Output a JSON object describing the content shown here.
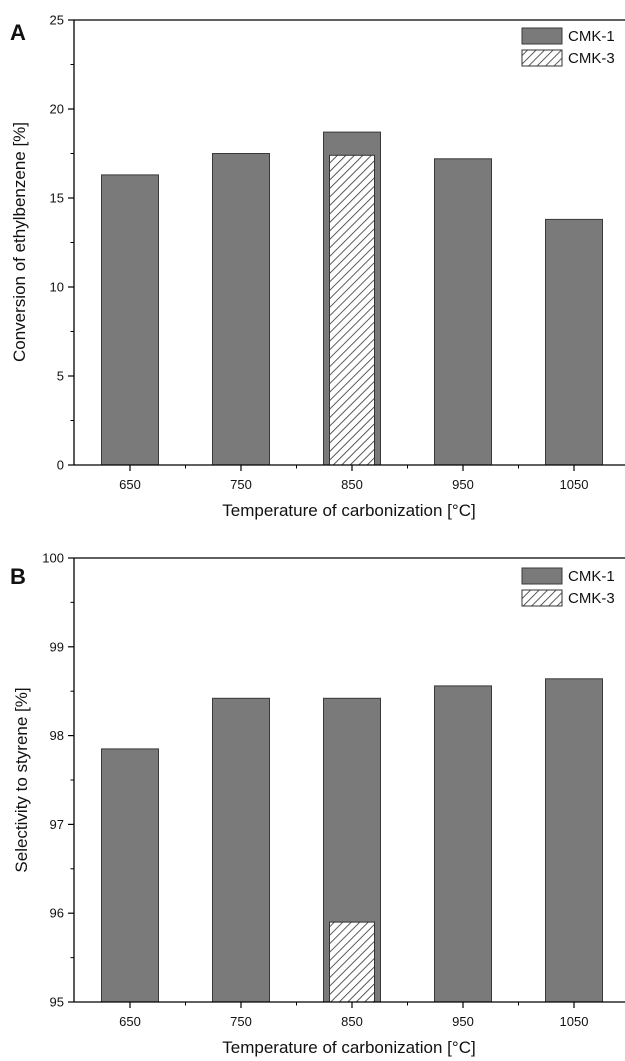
{
  "colors": {
    "cmk1_fill": "#7a7a7a",
    "cmk1_stroke": "#3a3a3a",
    "cmk3_fill": "#ffffff",
    "cmk3_hatch": "#333333",
    "axis": "#000000"
  },
  "chart_data": [
    {
      "panel": "A",
      "type": "bar",
      "xlabel": "Temperature of carbonization [°C]",
      "ylabel": "Conversion of ethylbenzene [%]",
      "categories": [
        "650",
        "750",
        "850",
        "950",
        "1050"
      ],
      "ylim": [
        0,
        25
      ],
      "yticks": [
        "0",
        "5",
        "10",
        "15",
        "20",
        "25"
      ],
      "series": [
        {
          "name": "CMK-1",
          "values": [
            16.3,
            17.5,
            18.7,
            17.2,
            13.8
          ]
        },
        {
          "name": "CMK-3",
          "values": [
            null,
            null,
            17.4,
            null,
            null
          ]
        }
      ],
      "legend": "top-right",
      "grid": false
    },
    {
      "panel": "B",
      "type": "bar",
      "xlabel": "Temperature of carbonization [°C]",
      "ylabel": "Selectivity to styrene [%]",
      "categories": [
        "650",
        "750",
        "850",
        "950",
        "1050"
      ],
      "ylim": [
        95,
        100
      ],
      "yticks": [
        "95",
        "96",
        "97",
        "98",
        "99",
        "100"
      ],
      "series": [
        {
          "name": "CMK-1",
          "values": [
            97.85,
            98.42,
            98.42,
            98.56,
            98.64
          ]
        },
        {
          "name": "CMK-3",
          "values": [
            null,
            null,
            95.9,
            null,
            null
          ]
        }
      ],
      "legend": "top-right",
      "grid": false
    }
  ]
}
